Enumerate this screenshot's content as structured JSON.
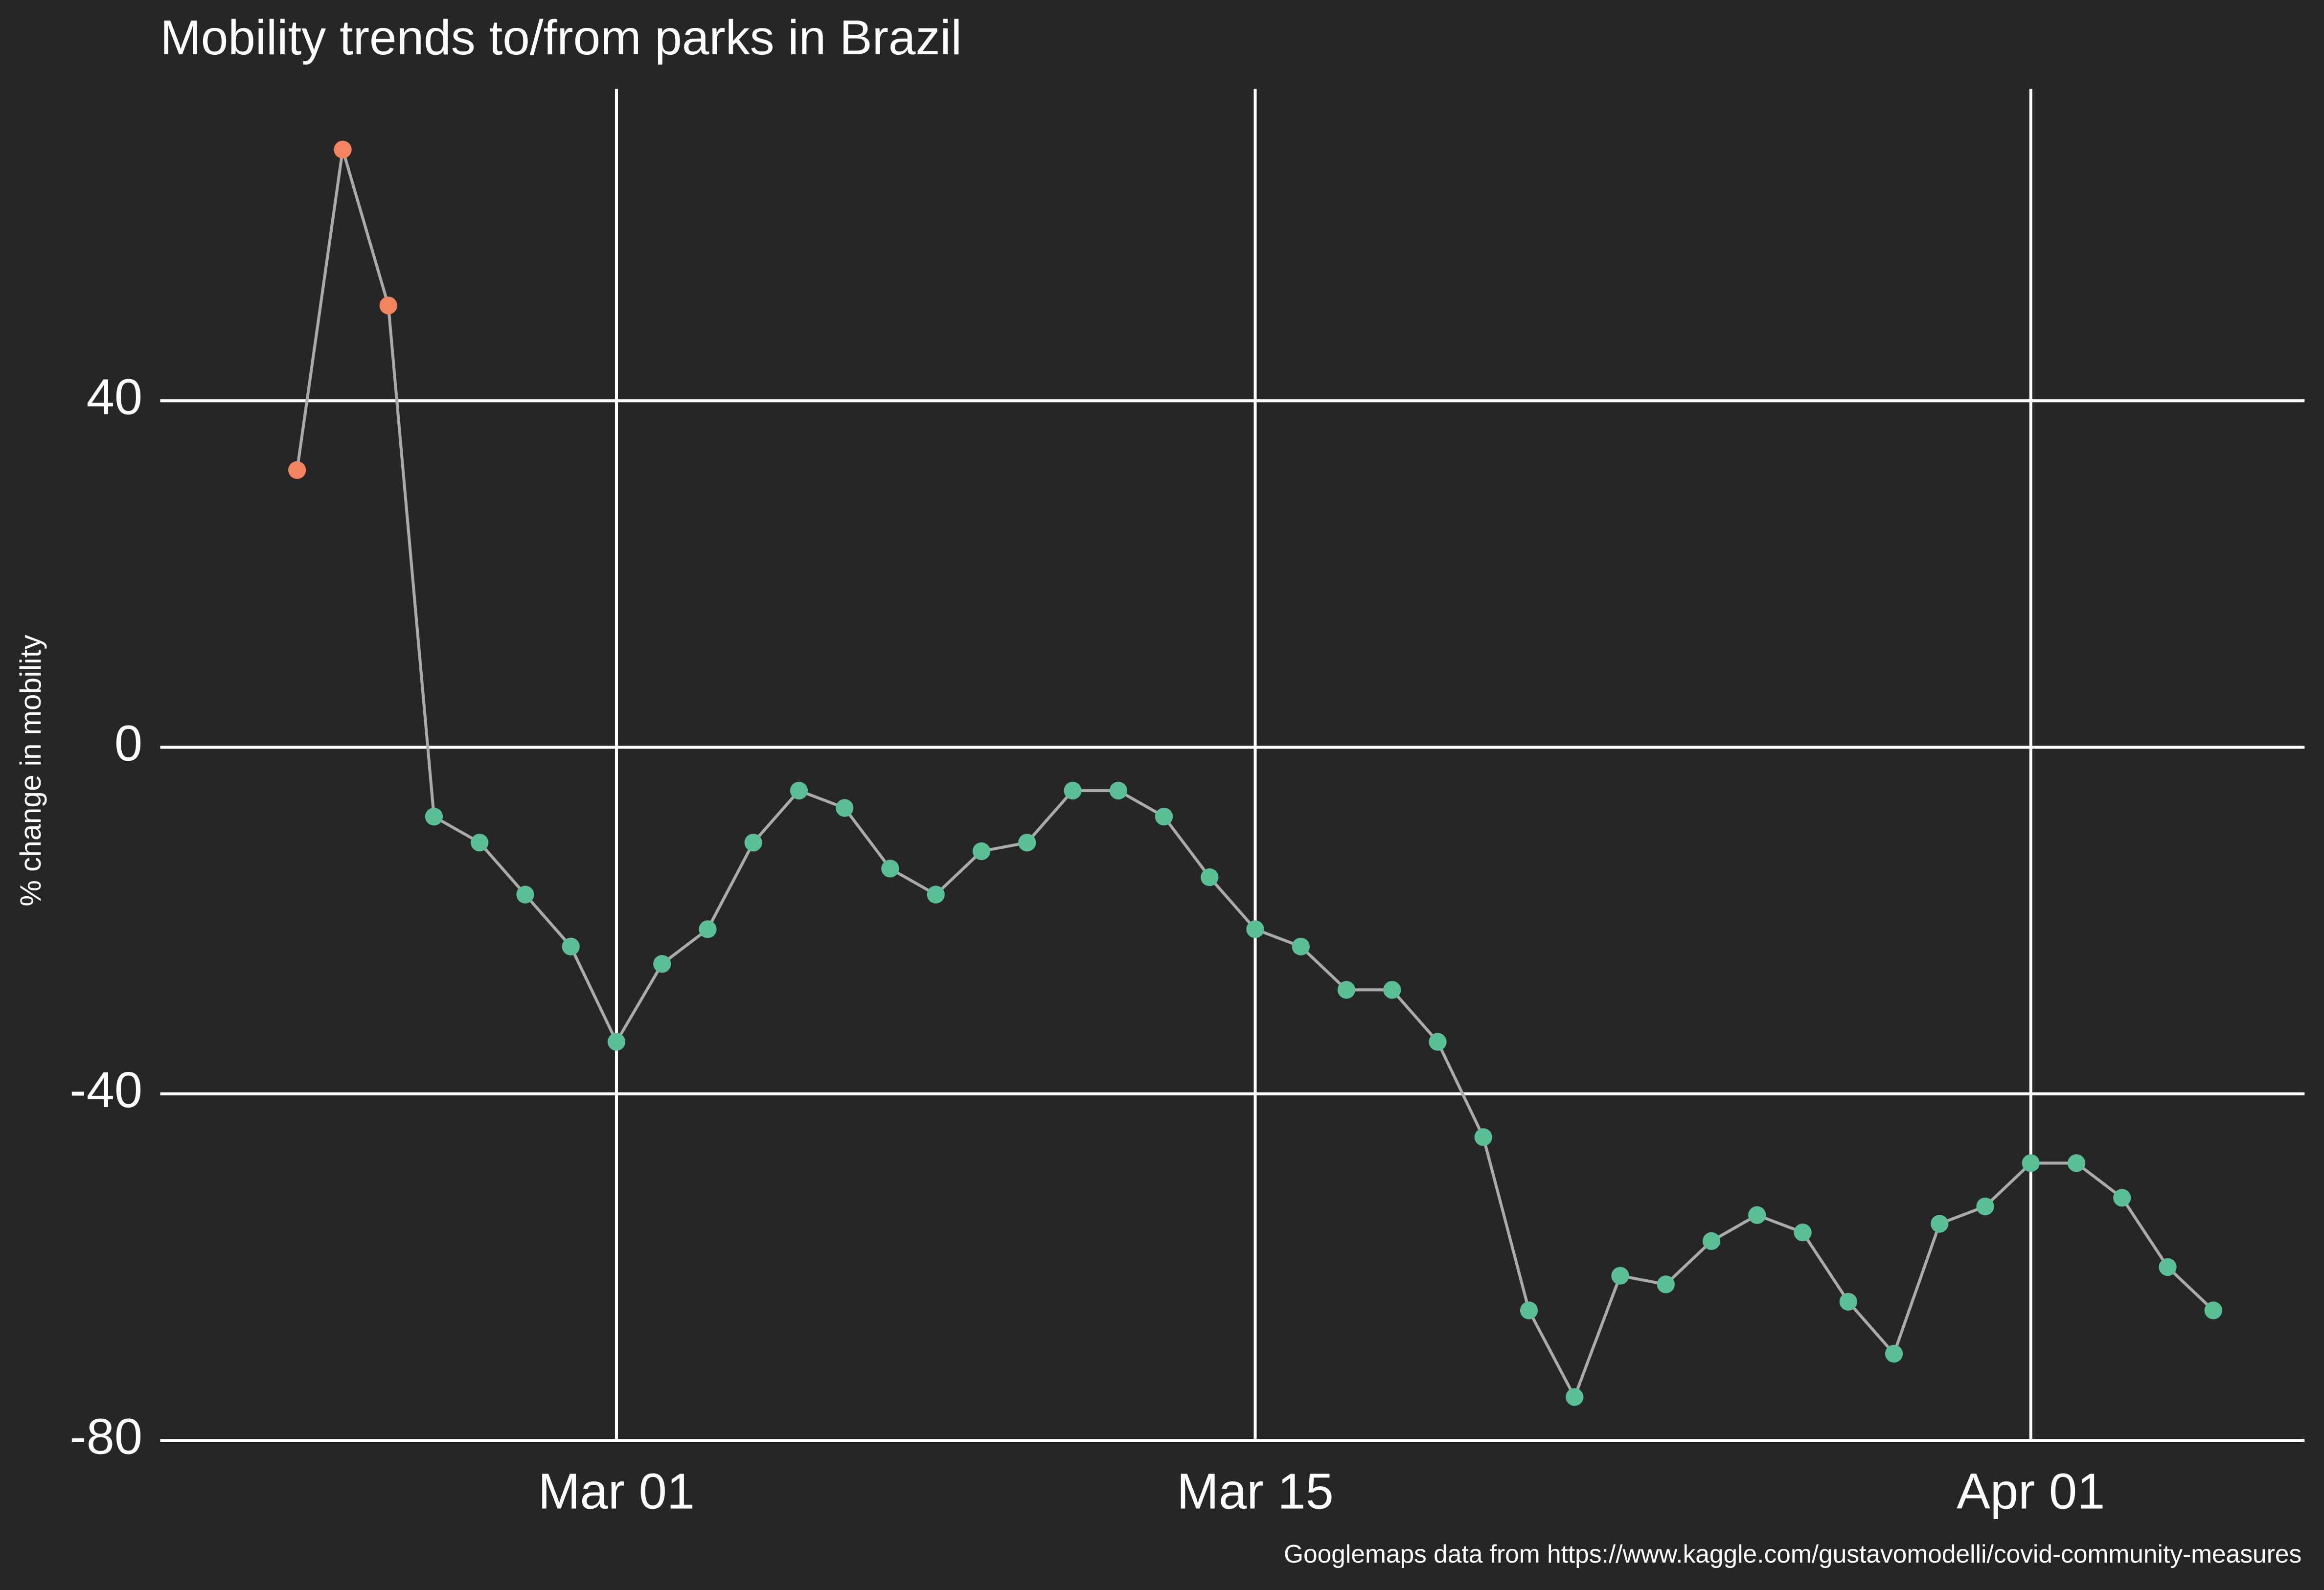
{
  "chart_data": {
    "type": "line",
    "title": "Mobility trends to/from parks in Brazil",
    "y_label": "% change in mobility",
    "caption": "Googlemaps data from https://www.kaggle.com/gustavomodelli/covid-community-measures",
    "x": [
      "Feb 23",
      "Feb 24",
      "Feb 25",
      "Feb 26",
      "Feb 27",
      "Feb 28",
      "Feb 29",
      "Mar 01",
      "Mar 02",
      "Mar 03",
      "Mar 04",
      "Mar 05",
      "Mar 06",
      "Mar 07",
      "Mar 08",
      "Mar 09",
      "Mar 10",
      "Mar 11",
      "Mar 12",
      "Mar 13",
      "Mar 14",
      "Mar 15",
      "Mar 16",
      "Mar 17",
      "Mar 18",
      "Mar 19",
      "Mar 20",
      "Mar 21",
      "Mar 22",
      "Mar 23",
      "Mar 24",
      "Mar 25",
      "Mar 26",
      "Mar 27",
      "Mar 28",
      "Mar 29",
      "Mar 30",
      "Mar 31",
      "Apr 01",
      "Apr 02",
      "Apr 03",
      "Apr 04",
      "Apr 05"
    ],
    "values": [
      32,
      69,
      51,
      -8,
      -11,
      -17,
      -23,
      -34,
      -25,
      -21,
      -11,
      -5,
      -7,
      -14,
      -17,
      -12,
      -11,
      -5,
      -5,
      -8,
      -15,
      -21,
      -23,
      -28,
      -28,
      -34,
      -45,
      -65,
      -75,
      -61,
      -62,
      -57,
      -54,
      -56,
      -64,
      -70,
      -55,
      -53,
      -48,
      -48,
      -52,
      -60,
      -65
    ],
    "point_colors": [
      "#f4845f",
      "#f4845f",
      "#f4845f",
      "#5bbf95",
      "#5bbf95",
      "#5bbf95",
      "#5bbf95",
      "#5bbf95",
      "#5bbf95",
      "#5bbf95",
      "#5bbf95",
      "#5bbf95",
      "#5bbf95",
      "#5bbf95",
      "#5bbf95",
      "#5bbf95",
      "#5bbf95",
      "#5bbf95",
      "#5bbf95",
      "#5bbf95",
      "#5bbf95",
      "#5bbf95",
      "#5bbf95",
      "#5bbf95",
      "#5bbf95",
      "#5bbf95",
      "#5bbf95",
      "#5bbf95",
      "#5bbf95",
      "#5bbf95",
      "#5bbf95",
      "#5bbf95",
      "#5bbf95",
      "#5bbf95",
      "#5bbf95",
      "#5bbf95",
      "#5bbf95",
      "#5bbf95",
      "#5bbf95",
      "#5bbf95",
      "#5bbf95",
      "#5bbf95",
      "#5bbf95"
    ],
    "line_color": "#aaaaaa",
    "xlim": [
      "Feb 20",
      "Apr 07"
    ],
    "xticks": [
      "Mar 01",
      "Mar 15",
      "Apr 01"
    ],
    "ylim": [
      -80,
      76
    ],
    "yticks": [
      -80,
      -40,
      0,
      40
    ],
    "grid": true
  }
}
